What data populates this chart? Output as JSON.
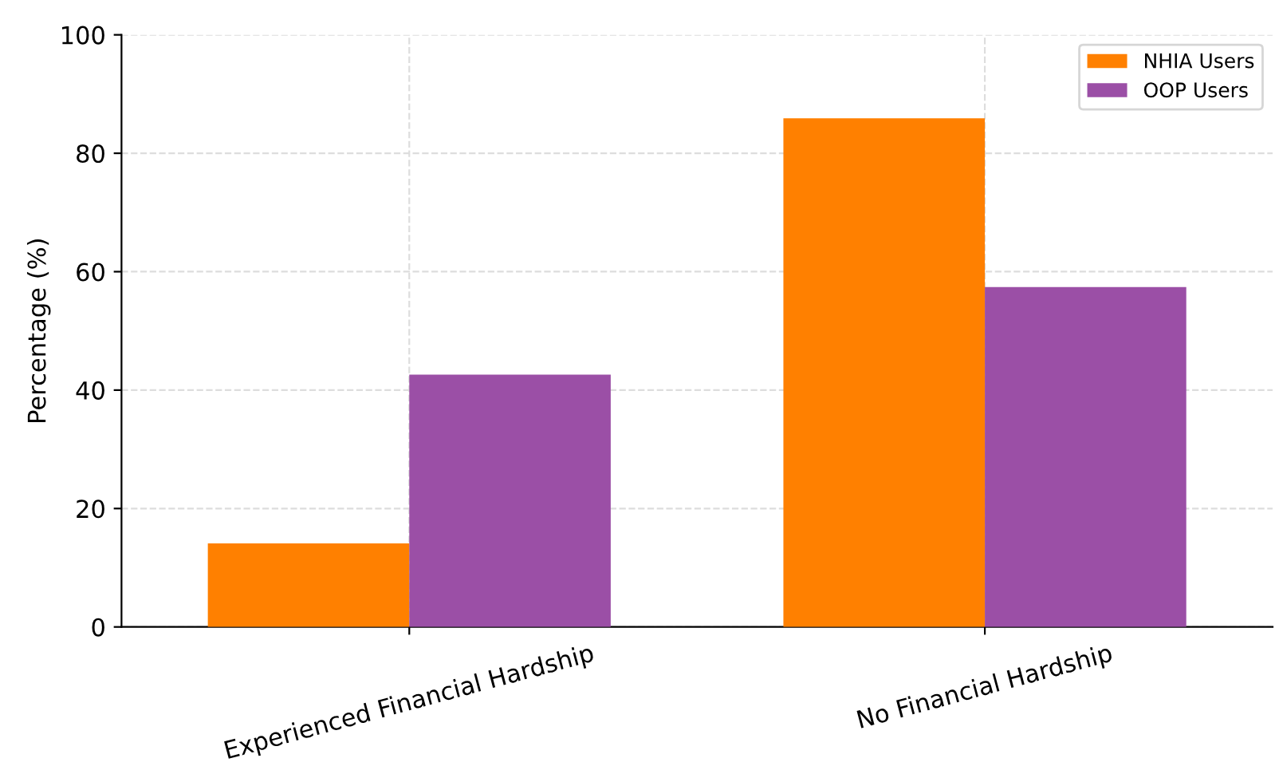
{
  "chart_data": {
    "type": "bar",
    "ylabel": "Percentage (%)",
    "categories": [
      "Experienced Financial Hardship",
      "No Financial Hardship"
    ],
    "series": [
      {
        "name": "NHIA Users",
        "color": "#ff8000",
        "values": [
          14.1,
          85.9
        ]
      },
      {
        "name": "OOP Users",
        "color": "#9b4fa6",
        "values": [
          42.6,
          57.4
        ]
      }
    ],
    "ylim": [
      0,
      100
    ],
    "yticks": [
      0,
      20,
      40,
      60,
      80,
      100
    ],
    "grid": true,
    "legend": "top right"
  }
}
